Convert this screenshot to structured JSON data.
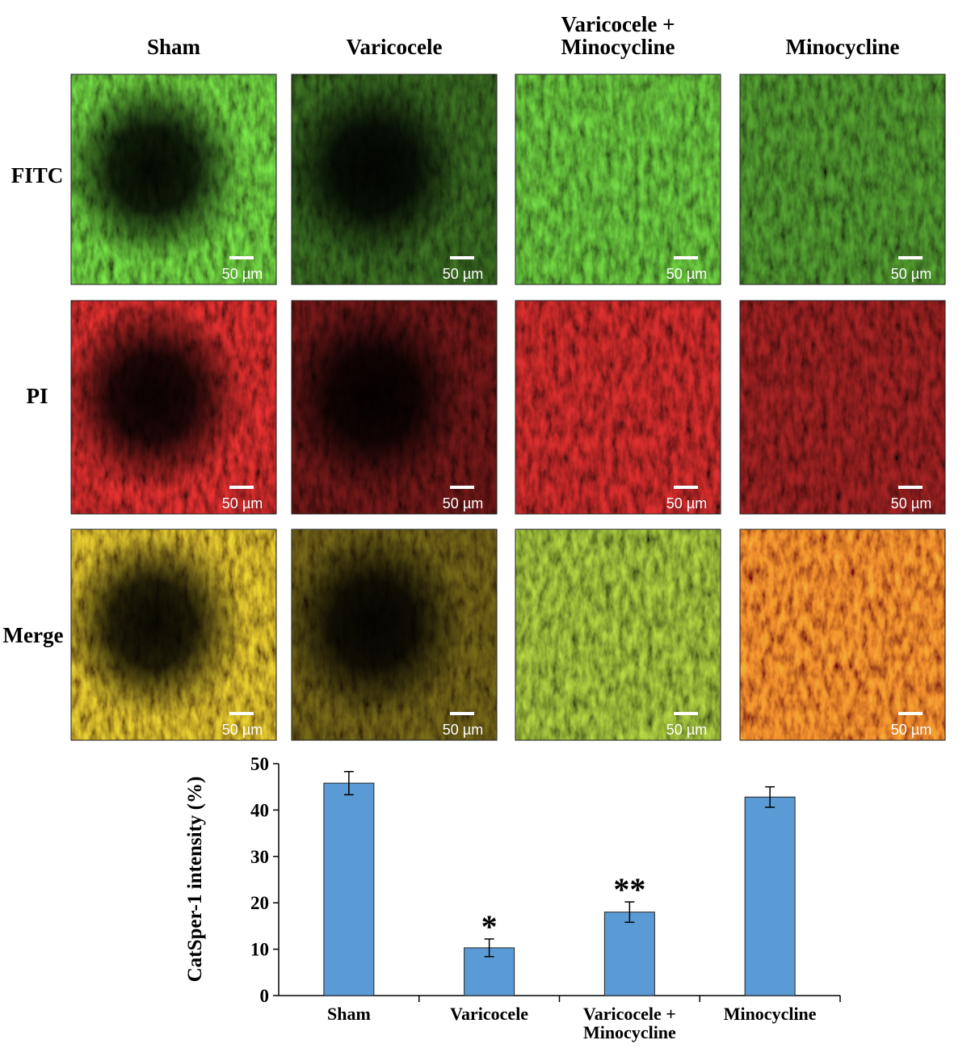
{
  "micrographs": {
    "columns": [
      "Sham",
      "Varicocele",
      "Varicocele + Minocycline",
      "Minocycline"
    ],
    "rows": [
      {
        "label": "FITC",
        "scale_bars": [
          "50 µm",
          "50 µm",
          "50 µm",
          "50 µm"
        ]
      },
      {
        "label": "PI",
        "scale_bars": [
          "50 µm",
          "50 µm",
          "50 µm",
          "50 µm"
        ]
      },
      {
        "label": "Merge",
        "scale_bars": [
          "50 µm",
          "50 µm",
          "50 µm",
          "50 µm"
        ]
      }
    ]
  },
  "chart_data": {
    "type": "bar",
    "ylabel": "CatSper-1 intensity (%)",
    "categories": [
      "Sham",
      "Varicocele",
      "Varicocele + Minocycline",
      "Minocycline"
    ],
    "values": [
      45.8,
      10.3,
      18,
      42.8
    ],
    "errors": [
      2.5,
      1.9,
      2.2,
      2.2
    ],
    "color": "#5b9bd5",
    "annotations": [
      {
        "text": "*",
        "category": "Varicocele"
      },
      {
        "text": "**",
        "category": "Varicocele + Minocycline"
      }
    ],
    "ylim": [
      0,
      50
    ],
    "yticks": [
      0,
      10,
      20,
      30,
      40,
      50
    ],
    "grid": false
  }
}
